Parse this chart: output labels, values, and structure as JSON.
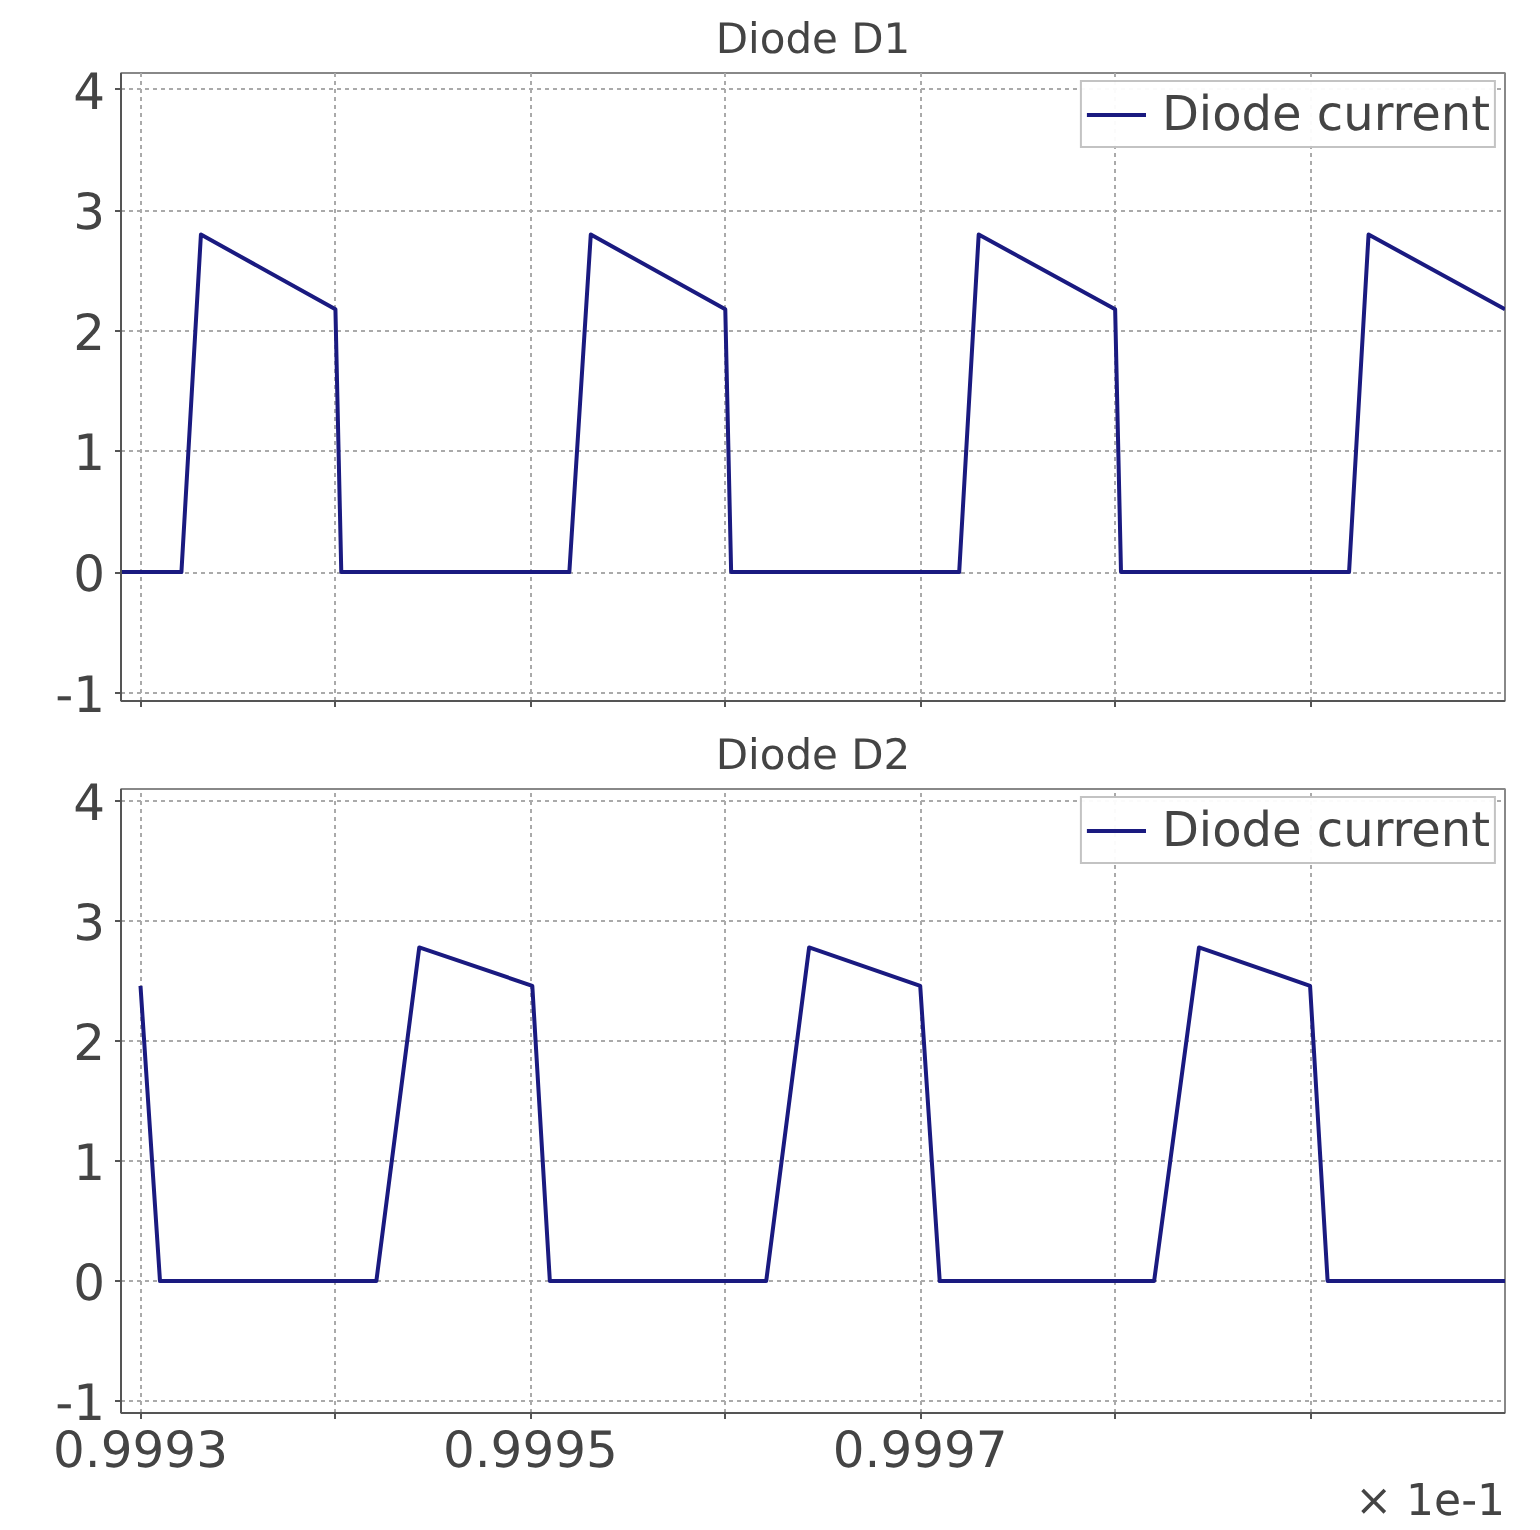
{
  "chart_data": [
    {
      "type": "line",
      "title": "Diode D1",
      "xlim": [
        0.99929,
        1.0
      ],
      "ylim": [
        -1.07,
        4.14
      ],
      "yticks": [
        -1,
        0,
        1,
        2,
        3,
        4
      ],
      "xticks": [
        {
          "value": 0.9993,
          "label": null
        },
        {
          "value": 0.9994,
          "label": null
        },
        {
          "value": 0.9995,
          "label": null
        },
        {
          "value": 0.9996,
          "label": null
        },
        {
          "value": 0.9997,
          "label": null
        },
        {
          "value": 0.9998,
          "label": null
        },
        {
          "value": 0.9999,
          "label": null
        }
      ],
      "tick_labels": "y",
      "grid": true,
      "legend": "top right",
      "line_style": "solid",
      "marker": "none",
      "series": [
        {
          "name": "Diode current",
          "color": "#1a1a80",
          "x": [
            0.99929,
            0.999321,
            0.999331,
            0.9994,
            0.999403,
            0.99952,
            0.999531,
            0.9996,
            0.999603,
            0.99972,
            0.99973,
            0.9998,
            0.999803,
            0.99992,
            0.99993,
            1.0
          ],
          "values": [
            0,
            0,
            2.8,
            2.18,
            0,
            0,
            2.8,
            2.18,
            0,
            0,
            2.8,
            2.18,
            0,
            0,
            2.8,
            2.18
          ]
        }
      ]
    },
    {
      "type": "line",
      "title": "Diode D2",
      "xlim": [
        0.99929,
        1.0
      ],
      "ylim": [
        -1.1,
        4.1
      ],
      "yticks": [
        -1,
        0,
        1,
        2,
        3,
        4
      ],
      "xticks": [
        0.9993,
        {
          "value": 0.9994,
          "label": null
        },
        0.9995,
        {
          "value": 0.9996,
          "label": null
        },
        0.9997,
        {
          "value": 0.9998,
          "label": null
        },
        {
          "value": 0.9999,
          "label": null
        }
      ],
      "grid": true,
      "legend": "top right",
      "line_style": "solid",
      "marker": "none",
      "annotations": [
        "× 1e-1"
      ],
      "series": [
        {
          "name": "Diode current",
          "color": "#1a1a80",
          "x": [
            0.9993,
            0.99931,
            0.999421,
            0.999443,
            0.999501,
            0.99951,
            0.999621,
            0.999643,
            0.9997,
            0.99971,
            0.99982,
            0.999843,
            0.9999,
            0.999909,
            1.0
          ],
          "values": [
            2.46,
            0,
            0,
            2.78,
            2.46,
            0,
            0,
            2.78,
            2.46,
            0,
            0,
            2.78,
            2.46,
            0,
            0
          ]
        }
      ]
    }
  ]
}
